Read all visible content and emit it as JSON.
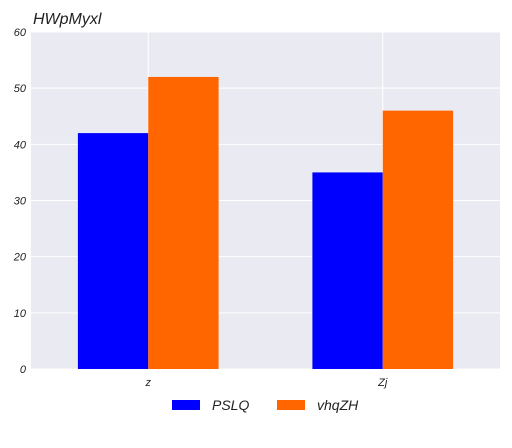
{
  "chart_data": {
    "type": "bar",
    "title": "HWpMyxl",
    "xlabel": "",
    "ylabel": "",
    "categories": [
      "z",
      "Zj"
    ],
    "series": [
      {
        "name": "PSLQ",
        "values": [
          42,
          35
        ],
        "color": "#0000ff"
      },
      {
        "name": "vhqZH",
        "values": [
          52,
          46
        ],
        "color": "#ff6600"
      }
    ],
    "ylim": [
      0,
      60
    ],
    "yticks": [
      0,
      10,
      20,
      30,
      40,
      50,
      60
    ],
    "grid": true,
    "legend_position": "bottom-center",
    "plot_background": "#eaeaf2"
  }
}
